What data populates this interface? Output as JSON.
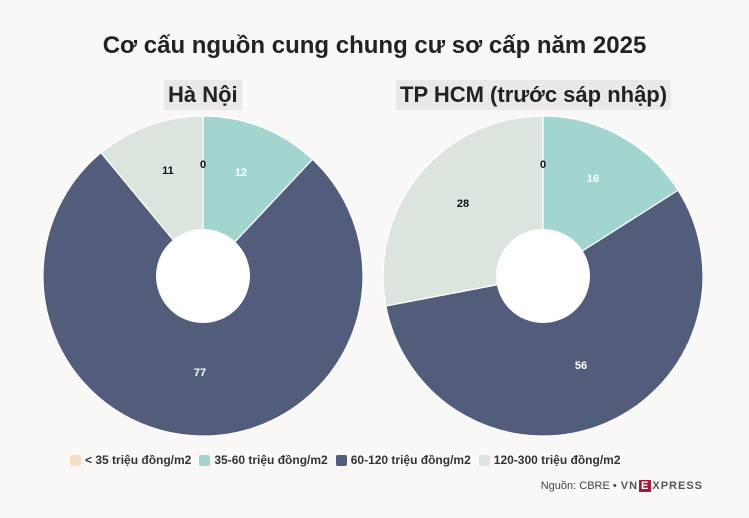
{
  "chart_data": [
    {
      "type": "pie",
      "title": "Cơ cấu nguồn cung chung cư sơ cấp năm 2025",
      "subtitle": "Hà Nội",
      "categories": [
        "< 35 triệu đồng/m2",
        "35-60 triệu đồng/m2",
        "60-120 triệu đồng/m2",
        "120-300 triệu đồng/m2"
      ],
      "values": [
        0,
        12,
        77,
        11
      ],
      "colors": [
        "#f6dcc4",
        "#a2d4d0",
        "#525c7b",
        "#dbe5de"
      ],
      "label_colors": [
        "#111111",
        "#ffffff",
        "#ffffff",
        "#111111"
      ],
      "donut": true,
      "legend": "bottom"
    },
    {
      "type": "pie",
      "title": "Cơ cấu nguồn cung chung cư sơ cấp năm 2025",
      "subtitle": "TP HCM (trước sáp nhập)",
      "categories": [
        "< 35 triệu đồng/m2",
        "35-60 triệu đồng/m2",
        "60-120 triệu đồng/m2",
        "120-300 triệu đồng/m2"
      ],
      "values": [
        0,
        16,
        56,
        28
      ],
      "colors": [
        "#f6dcc4",
        "#a2d4d0",
        "#525c7b",
        "#dbe5de"
      ],
      "label_colors": [
        "#111111",
        "#ffffff",
        "#ffffff",
        "#111111"
      ],
      "donut": true,
      "legend": "bottom"
    }
  ],
  "page": {
    "title": "Cơ cấu nguồn cung chung cư sơ cấp năm 2025",
    "subtitle_left": "Hà Nội",
    "subtitle_right": "TP HCM (trước sáp nhập)",
    "source": "Nguồn: CBRE •",
    "brand": "VNEXPRESS"
  },
  "legend": [
    {
      "label": "< 35 triệu đồng/m2",
      "color": "#f6dcc4"
    },
    {
      "label": "35-60 triệu đồng/m2",
      "color": "#a2d4d0"
    },
    {
      "label": "60-120 triệu đồng/m2",
      "color": "#525c7b"
    },
    {
      "label": "120-300 triệu đồng/m2",
      "color": "#dbe5de"
    }
  ]
}
